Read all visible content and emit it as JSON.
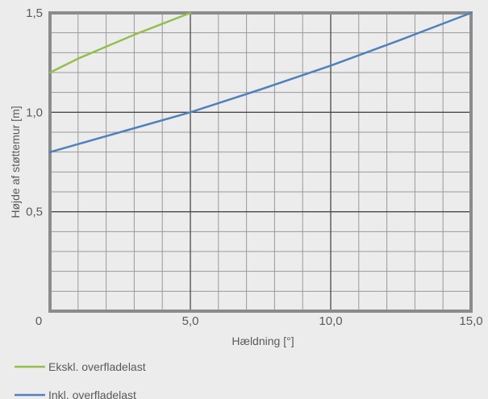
{
  "chart_data": {
    "type": "line",
    "xlabel": "Hældning [°]",
    "ylabel": "Højde af støttemur [m]",
    "xlim": [
      0,
      15
    ],
    "ylim": [
      0,
      1.5
    ],
    "x_ticks": [
      {
        "value": 0,
        "label": "0"
      },
      {
        "value": 5,
        "label": "5,0"
      },
      {
        "value": 10,
        "label": "10,0"
      },
      {
        "value": 15,
        "label": "15,0"
      }
    ],
    "y_ticks": [
      {
        "value": 0.5,
        "label": "0,5"
      },
      {
        "value": 1.0,
        "label": "1,0"
      },
      {
        "value": 1.5,
        "label": "1,5"
      }
    ],
    "x_minor_step": 1,
    "y_minor_step": 0.1,
    "grid": true,
    "legend_position": "bottom-left",
    "series": [
      {
        "name": "Ekskl. overfladelast",
        "color": "#94bf4e",
        "points": [
          [
            0,
            1.2
          ],
          [
            1,
            1.27
          ],
          [
            2,
            1.33
          ],
          [
            3,
            1.39
          ],
          [
            4,
            1.445
          ],
          [
            5,
            1.5
          ]
        ]
      },
      {
        "name": "Inkl. overfladelast",
        "color": "#4f81bd",
        "points": [
          [
            0,
            0.8
          ],
          [
            2.5,
            0.9
          ],
          [
            5,
            1.0
          ],
          [
            7.5,
            1.115
          ],
          [
            10,
            1.235
          ],
          [
            12.5,
            1.365
          ],
          [
            15,
            1.5
          ]
        ]
      }
    ]
  }
}
